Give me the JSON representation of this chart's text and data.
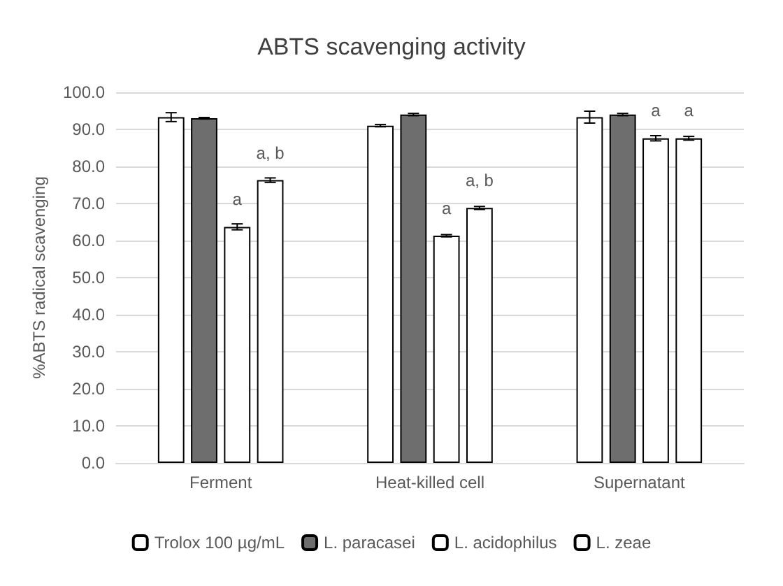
{
  "chart_data": {
    "type": "bar",
    "title": "ABTS scavenging activity",
    "ylabel": "%ABTS radical scavenging",
    "categories": [
      "Ferment",
      "Heat-killed cell",
      "Supernatant"
    ],
    "series": [
      {
        "name": "Trolox 100 µg/mL",
        "color": "#ffffff",
        "values": [
          93.3,
          91.0,
          93.3
        ],
        "errors": [
          1.2,
          0.3,
          1.6
        ]
      },
      {
        "name": "L. paracasei",
        "color": "#6e6e6e",
        "values": [
          93.0,
          94.0,
          94.0
        ],
        "errors": [
          0.2,
          0.3,
          0.3
        ]
      },
      {
        "name": "L. acidophilus",
        "color": "#ffffff",
        "values": [
          63.7,
          61.3,
          87.6
        ],
        "errors": [
          0.8,
          0.3,
          0.7
        ]
      },
      {
        "name": "L. zeae",
        "color": "#ffffff",
        "values": [
          76.3,
          68.8,
          87.6
        ],
        "errors": [
          0.6,
          0.4,
          0.5
        ]
      }
    ],
    "annotations": [
      {
        "text": "a",
        "x": "Ferment",
        "y": 67
      },
      {
        "text": "a, b",
        "x": "Ferment",
        "y": 79.5
      },
      {
        "text": "a",
        "x": "Heat-killed cell",
        "y": 64.5
      },
      {
        "text": "a, b",
        "x": "Heat-killed cell",
        "y": 72
      },
      {
        "text": "a",
        "x": "Supernatant",
        "y": 91
      },
      {
        "text": "a",
        "x": "Supernatant",
        "y": 91
      }
    ],
    "ylim": [
      0,
      100
    ],
    "yticks": [
      {
        "value": 0,
        "label": "0.0"
      },
      {
        "value": 10,
        "label": "10.0"
      },
      {
        "value": 20,
        "label": "20.0"
      },
      {
        "value": 30,
        "label": "30.0"
      },
      {
        "value": 40,
        "label": "40.0"
      },
      {
        "value": 50,
        "label": "50.0"
      },
      {
        "value": 60,
        "label": "60.0"
      },
      {
        "value": 70,
        "label": "70.0"
      },
      {
        "value": 80,
        "label": "80.0"
      },
      {
        "value": 90,
        "label": "90.0"
      },
      {
        "value": 100,
        "label": "100.0"
      }
    ],
    "grid": "y",
    "legend": "bottom"
  }
}
